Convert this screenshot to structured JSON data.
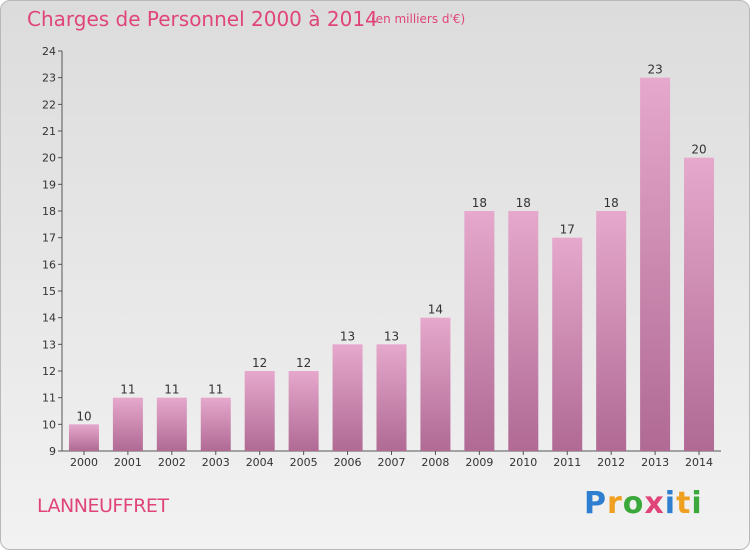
{
  "header": {
    "title": "Charges de Personnel 2000 à 2014",
    "subtitle": "(en milliers d'€)"
  },
  "commune": "LANNEUFFRET",
  "logo": {
    "text": "Proxiti",
    "letters": [
      {
        "char": "P",
        "color": "#2f7fd0"
      },
      {
        "char": "r",
        "color": "#f0a020"
      },
      {
        "char": "o",
        "color": "#3aa83a"
      },
      {
        "char": "x",
        "color": "#e0457a"
      },
      {
        "char": "i",
        "color": "#2f7fd0"
      },
      {
        "char": "t",
        "color": "#f0a020"
      },
      {
        "char": "i",
        "color": "#3aa83a"
      }
    ]
  },
  "colors": {
    "bar_top": "#e6a8cc",
    "bar_bottom": "#b06a94",
    "accent": "#e0457a",
    "axis": "#555555"
  },
  "chart_data": {
    "type": "bar",
    "title": "Charges de Personnel 2000 à 2014",
    "subtitle": "(en milliers d'€)",
    "categories": [
      "2000",
      "2001",
      "2002",
      "2003",
      "2004",
      "2005",
      "2006",
      "2007",
      "2008",
      "2009",
      "2010",
      "2011",
      "2012",
      "2013",
      "2014"
    ],
    "values": [
      10,
      11,
      11,
      11,
      12,
      12,
      13,
      13,
      14,
      18,
      18,
      17,
      18,
      23,
      20
    ],
    "ylim": [
      9,
      24
    ],
    "yticks": [
      9,
      10,
      11,
      12,
      13,
      14,
      15,
      16,
      17,
      18,
      19,
      20,
      21,
      22,
      23,
      24
    ],
    "grid": false,
    "data_labels": true
  }
}
